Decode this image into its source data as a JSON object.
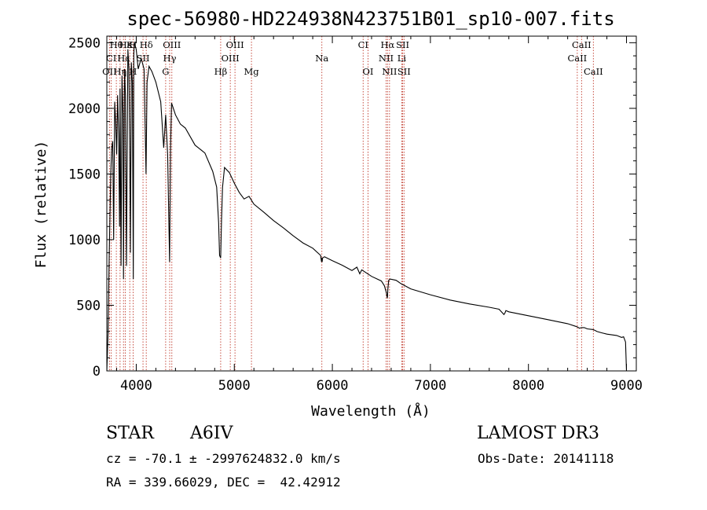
{
  "chart_data": {
    "type": "line",
    "title": "spec-56980-HD224938N423751B01_sp10-007.fits",
    "xlabel": "Wavelength (Å)",
    "ylabel": "Flux (relative)",
    "xlim": [
      3700,
      9100
    ],
    "ylim": [
      0,
      2550
    ],
    "xticks": [
      4000,
      5000,
      6000,
      7000,
      8000,
      9000
    ],
    "yticks": [
      0,
      500,
      1000,
      1500,
      2000,
      2500
    ],
    "xtick_labels": [
      "4000",
      "5000",
      "6000",
      "7000",
      "8000",
      "9000"
    ],
    "ytick_labels": [
      "0",
      "500",
      "1000",
      "1500",
      "2000",
      "2500"
    ],
    "grid": false,
    "series": [
      {
        "name": "spectrum",
        "color": "#000000",
        "x": [
          3700,
          3712,
          3725,
          3740,
          3750,
          3760,
          3770,
          3780,
          3790,
          3800,
          3810,
          3820,
          3830,
          3835,
          3845,
          3855,
          3865,
          3870,
          3880,
          3890,
          3900,
          3915,
          3925,
          3933,
          3940,
          3950,
          3960,
          3970,
          3975,
          3980,
          4000,
          4020,
          4050,
          4080,
          4100,
          4110,
          4130,
          4160,
          4200,
          4250,
          4280,
          4300,
          4320,
          4340,
          4350,
          4360,
          4400,
          4450,
          4500,
          4600,
          4700,
          4780,
          4820,
          4840,
          4850,
          4861,
          4870,
          4880,
          4900,
          4950,
          5000,
          5050,
          5100,
          5150,
          5200,
          5300,
          5400,
          5500,
          5600,
          5700,
          5800,
          5880,
          5890,
          5893,
          5896,
          5900,
          5920,
          6000,
          6100,
          6200,
          6250,
          6280,
          6300,
          6400,
          6500,
          6530,
          6550,
          6560,
          6563,
          6566,
          6575,
          6590,
          6650,
          6700,
          6800,
          7000,
          7200,
          7400,
          7600,
          7700,
          7750,
          7760,
          7770,
          7800,
          8000,
          8200,
          8400,
          8480,
          8498,
          8520,
          8542,
          8570,
          8600,
          8662,
          8700,
          8750,
          8800,
          8850,
          8900,
          8950,
          8970,
          8990,
          9000
        ],
        "y": [
          0,
          280,
          900,
          1500,
          1700,
          1750,
          1000,
          2050,
          1900,
          1650,
          2100,
          1800,
          1100,
          2150,
          800,
          2250,
          1950,
          700,
          2300,
          2100,
          800,
          2450,
          2300,
          1750,
          900,
          2350,
          2200,
          700,
          2400,
          2500,
          2450,
          2300,
          2380,
          2300,
          1500,
          2200,
          2320,
          2280,
          2200,
          2050,
          1700,
          1950,
          1650,
          830,
          1700,
          2040,
          1950,
          1880,
          1850,
          1720,
          1660,
          1520,
          1400,
          1130,
          880,
          860,
          1150,
          1400,
          1550,
          1510,
          1430,
          1360,
          1310,
          1330,
          1270,
          1210,
          1145,
          1090,
          1030,
          975,
          935,
          880,
          830,
          860,
          830,
          860,
          870,
          840,
          805,
          765,
          790,
          740,
          770,
          720,
          685,
          650,
          600,
          555,
          570,
          620,
          690,
          700,
          690,
          665,
          625,
          580,
          540,
          510,
          485,
          470,
          430,
          440,
          460,
          450,
          420,
          390,
          360,
          340,
          335,
          325,
          330,
          330,
          320,
          315,
          300,
          290,
          280,
          275,
          270,
          255,
          260,
          220,
          0
        ]
      }
    ],
    "lines": [
      {
        "label": "Hθ",
        "wave": 3797,
        "row": 1
      },
      {
        "label": "Hε",
        "wave": 3889,
        "row": 1
      },
      {
        "label": "K",
        "wave": 3934,
        "row": 1
      },
      {
        "label": "H",
        "wave": 3968,
        "row": 1
      },
      {
        "label": "Hδ",
        "wave": 4102,
        "row": 1
      },
      {
        "label": "OIII",
        "wave": 4363,
        "row": 1
      },
      {
        "label": "OIII",
        "wave": 5007,
        "row": 1
      },
      {
        "label": "CI",
        "wave": 6314,
        "row": 1
      },
      {
        "label": "Hα",
        "wave": 6563,
        "row": 1
      },
      {
        "label": "SII",
        "wave": 6717,
        "row": 1
      },
      {
        "label": "CaII",
        "wave": 8542,
        "row": 1
      },
      {
        "label": "CI",
        "wave": 3745,
        "row": 2
      },
      {
        "label": "Hε",
        "wave": 3870,
        "row": 2
      },
      {
        "label": "SII",
        "wave": 4069,
        "row": 2
      },
      {
        "label": "Hγ",
        "wave": 4341,
        "row": 2
      },
      {
        "label": "OIII",
        "wave": 4959,
        "row": 2
      },
      {
        "label": "Na",
        "wave": 5893,
        "row": 2
      },
      {
        "label": "NII",
        "wave": 6548,
        "row": 2
      },
      {
        "label": "Li",
        "wave": 6708,
        "row": 2
      },
      {
        "label": "CaII",
        "wave": 8498,
        "row": 2
      },
      {
        "label": "OII",
        "wave": 3727,
        "row": 3
      },
      {
        "label": "Hη",
        "wave": 3835,
        "row": 3
      },
      {
        "label": "H",
        "wave": 3968,
        "row": 3
      },
      {
        "label": "G",
        "wave": 4300,
        "row": 3
      },
      {
        "label": "Hβ",
        "wave": 4861,
        "row": 3
      },
      {
        "label": "Mg",
        "wave": 5175,
        "row": 3
      },
      {
        "label": "OI",
        "wave": 6364,
        "row": 3
      },
      {
        "label": "NII",
        "wave": 6583,
        "row": 3
      },
      {
        "label": "SII",
        "wave": 6731,
        "row": 3
      },
      {
        "label": "CaII",
        "wave": 8662,
        "row": 3
      }
    ]
  },
  "info": {
    "class": "STAR",
    "subclass": "A6IV",
    "survey": "LAMOST DR3",
    "redshift": "cz = -70.1 ± -2997624832.0 km/s",
    "obsdate": "Obs-Date: 20141118",
    "coords": "RA = 339.66029, DEC =  42.42912"
  }
}
